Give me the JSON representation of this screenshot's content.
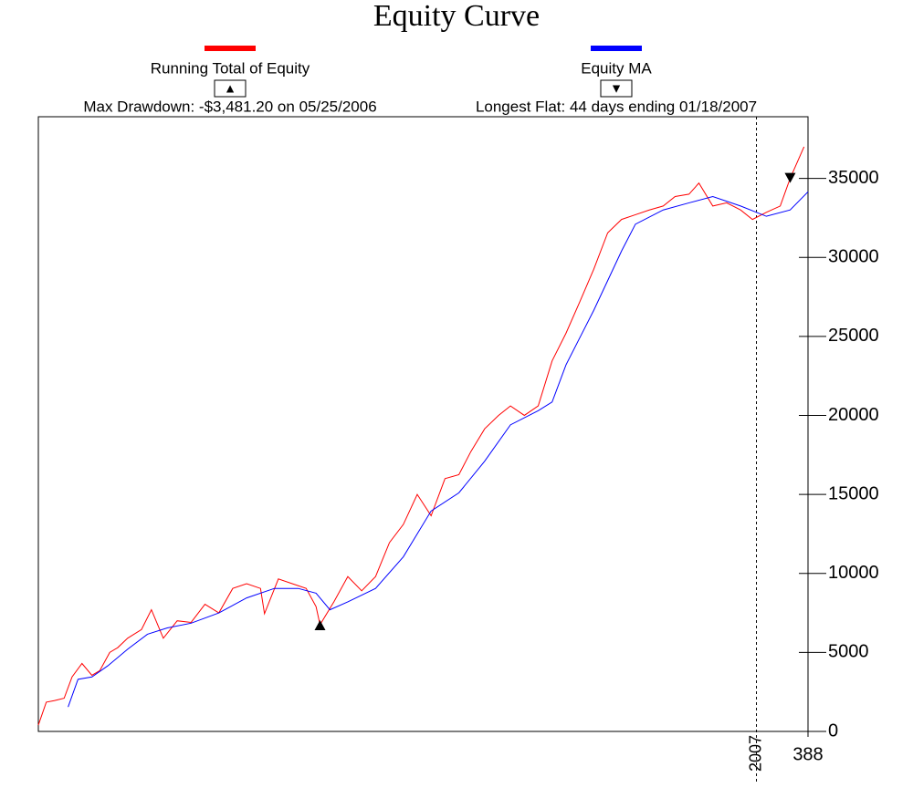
{
  "chart_data": {
    "type": "line",
    "title": "Equity Curve",
    "annotations": [
      "Max Drawdown: -$3,481.20 on 05/25/2006",
      "Longest Flat: 44 days ending 01/18/2007"
    ],
    "xlim": [
      0,
      388
    ],
    "xticks": [
      {
        "value": 362,
        "label": "2007"
      },
      388
    ],
    "ylim": [
      0,
      38900
    ],
    "yticks": [
      0,
      5000,
      10000,
      15000,
      20000,
      25000,
      30000,
      35000
    ],
    "series": [
      {
        "name": "Running Total of Equity",
        "color": "#ff0000",
        "symbol": "▲",
        "x": [
          0,
          4,
          8,
          13,
          17,
          22,
          27,
          31,
          36,
          40,
          45,
          52,
          57,
          63,
          70,
          77,
          84,
          91,
          98,
          105,
          112,
          114,
          121,
          128,
          135,
          140,
          142,
          149,
          156,
          163,
          170,
          177,
          184,
          191,
          198,
          205,
          212,
          218,
          225,
          232,
          238,
          245,
          252,
          259,
          266,
          273,
          280,
          287,
          294,
          301,
          308,
          315,
          321,
          328,
          333,
          340,
          347,
          354,
          360,
          367,
          374,
          379,
          386
        ],
        "values": [
          400,
          1850,
          1950,
          2100,
          3450,
          4300,
          3550,
          3850,
          5000,
          5300,
          5900,
          6450,
          7700,
          5900,
          7000,
          6900,
          8050,
          7500,
          9050,
          9350,
          9050,
          7450,
          9650,
          9350,
          9050,
          7900,
          6750,
          8200,
          9800,
          8900,
          9800,
          11950,
          13100,
          15000,
          13650,
          16000,
          16250,
          17700,
          19150,
          20000,
          20600,
          20000,
          20600,
          23450,
          25200,
          27200,
          29250,
          31550,
          32400,
          32700,
          33000,
          33250,
          33850,
          34000,
          34700,
          33250,
          33450,
          33000,
          32400,
          32850,
          33250,
          35000,
          37000
        ],
        "marker": {
          "x": 142,
          "y": 6750,
          "shape": "up"
        }
      },
      {
        "name": "Equity MA",
        "color": "#0000ff",
        "symbol": "▼",
        "x": [
          15,
          20,
          27,
          35,
          45,
          55,
          65,
          77,
          91,
          105,
          119,
          131,
          140,
          147,
          156,
          170,
          184,
          198,
          212,
          225,
          238,
          252,
          259,
          266,
          280,
          294,
          301,
          315,
          328,
          340,
          354,
          367,
          379,
          388
        ],
        "values": [
          1550,
          3300,
          3450,
          4150,
          5200,
          6150,
          6550,
          6850,
          7500,
          8450,
          9050,
          9050,
          8750,
          7700,
          8200,
          9050,
          11050,
          13950,
          15100,
          17100,
          19400,
          20300,
          20850,
          23200,
          26650,
          30400,
          32100,
          33000,
          33450,
          33850,
          33250,
          32600,
          33000,
          34150
        ],
        "marker": {
          "x": 379,
          "y": 35000,
          "shape": "down"
        }
      }
    ]
  }
}
